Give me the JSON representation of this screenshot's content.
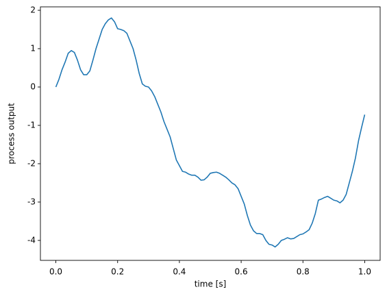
{
  "chart_data": {
    "type": "line",
    "xlabel": "time [s]",
    "ylabel": "process output",
    "color": "#1f77b4",
    "x": [
      0.0,
      0.01,
      0.02,
      0.03,
      0.04,
      0.05,
      0.06,
      0.07,
      0.08,
      0.09,
      0.1,
      0.11,
      0.12,
      0.13,
      0.14,
      0.15,
      0.16,
      0.17,
      0.18,
      0.19,
      0.2,
      0.21,
      0.22,
      0.23,
      0.24,
      0.25,
      0.26,
      0.27,
      0.28,
      0.29,
      0.3,
      0.31,
      0.32,
      0.33,
      0.34,
      0.35,
      0.36,
      0.37,
      0.38,
      0.39,
      0.4,
      0.41,
      0.42,
      0.43,
      0.44,
      0.45,
      0.46,
      0.47,
      0.48,
      0.49,
      0.5,
      0.51,
      0.52,
      0.53,
      0.54,
      0.55,
      0.56,
      0.57,
      0.58,
      0.59,
      0.6,
      0.61,
      0.62,
      0.63,
      0.64,
      0.65,
      0.66,
      0.67,
      0.68,
      0.69,
      0.7,
      0.71,
      0.72,
      0.73,
      0.74,
      0.75,
      0.76,
      0.77,
      0.78,
      0.79,
      0.8,
      0.81,
      0.82,
      0.83,
      0.84,
      0.85,
      0.86,
      0.87,
      0.88,
      0.89,
      0.9,
      0.91,
      0.92,
      0.93,
      0.94,
      0.95,
      0.96,
      0.97,
      0.98,
      0.99,
      1.0
    ],
    "values": [
      0,
      0.2,
      0.45,
      0.65,
      0.88,
      0.95,
      0.9,
      0.7,
      0.45,
      0.32,
      0.32,
      0.42,
      0.7,
      1.0,
      1.25,
      1.5,
      1.65,
      1.75,
      1.8,
      1.7,
      1.52,
      1.5,
      1.47,
      1.4,
      1.2,
      1.0,
      0.7,
      0.35,
      0.08,
      0.02,
      0.0,
      -0.1,
      -0.25,
      -0.45,
      -0.65,
      -0.9,
      -1.1,
      -1.3,
      -1.6,
      -1.9,
      -2.05,
      -2.2,
      -2.22,
      -2.27,
      -2.3,
      -2.3,
      -2.35,
      -2.43,
      -2.42,
      -2.35,
      -2.25,
      -2.23,
      -2.22,
      -2.25,
      -2.3,
      -2.35,
      -2.42,
      -2.5,
      -2.55,
      -2.65,
      -2.85,
      -3.05,
      -3.35,
      -3.6,
      -3.75,
      -3.82,
      -3.82,
      -3.85,
      -4.0,
      -4.1,
      -4.12,
      -4.17,
      -4.1,
      -4.0,
      -3.97,
      -3.93,
      -3.96,
      -3.95,
      -3.9,
      -3.85,
      -3.83,
      -3.78,
      -3.72,
      -3.55,
      -3.3,
      -2.95,
      -2.92,
      -2.88,
      -2.85,
      -2.9,
      -2.95,
      -2.97,
      -3.02,
      -2.95,
      -2.8,
      -2.5,
      -2.2,
      -1.85,
      -1.4,
      -1.05,
      -0.72
    ],
    "xlim": [
      -0.05,
      1.05
    ],
    "ylim": [
      -4.52,
      2.09
    ],
    "xticks": [
      {
        "value": 0.0,
        "label": "0.0"
      },
      0.2,
      0.4,
      0.6,
      0.8,
      {
        "value": 1.0,
        "label": "1.0"
      }
    ],
    "yticks": [
      -4,
      -3,
      -2,
      -1,
      0,
      1,
      2
    ],
    "grid": false
  }
}
